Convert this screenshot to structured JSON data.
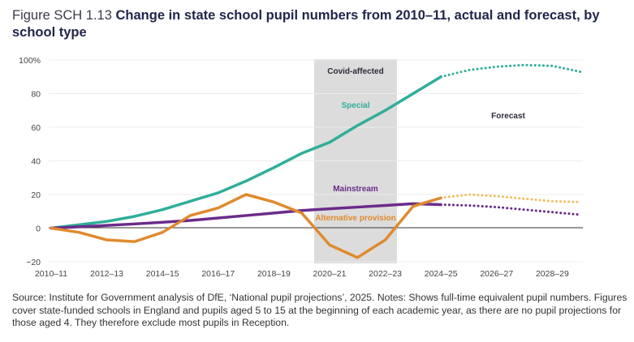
{
  "figure": {
    "label": "Figure SCH 1.13",
    "title": "Change in state school pupil numbers from 2010–11, actual and forecast, by school type"
  },
  "source": "Source: Institute for Government analysis of DfE, ‘National pupil projections’, 2025. Notes: Shows full-time equivalent pupil numbers. Figures cover state-funded schools in England and pupils aged 5 to 15 at the beginning of each academic year, as there are no pupil projections for those aged 4. They therefore exclude most pupils in Reception.",
  "chart_data": {
    "type": "line",
    "title": "Change in state school pupil numbers from 2010–11, actual and forecast, by school type",
    "xlabel": "",
    "ylabel": "",
    "x": [
      "2010–11",
      "2011–12",
      "2012–13",
      "2013–14",
      "2014–15",
      "2015–16",
      "2016–17",
      "2017–18",
      "2018–19",
      "2019–20",
      "2020–21",
      "2021–22",
      "2022–23",
      "2023–24",
      "2024–25",
      "2025–26",
      "2026–27",
      "2027–28",
      "2028–29",
      "2029–30"
    ],
    "x_tick_labels": [
      "2010–11",
      "2012–13",
      "2014–15",
      "2016–17",
      "2018–19",
      "2020–21",
      "2022–23",
      "2024–25",
      "2026–27",
      "2028–29"
    ],
    "y_tick_labels": [
      "100%",
      "80",
      "60",
      "40",
      "20",
      "0",
      "−20"
    ],
    "y_ticks": [
      100,
      80,
      60,
      40,
      20,
      0,
      -20
    ],
    "ylim": [
      -20,
      100
    ],
    "grid": true,
    "forecast_start_index": 14,
    "series": [
      {
        "name": "Special",
        "color": "#2fae9a",
        "values": [
          0,
          2,
          4,
          7,
          11,
          16,
          21,
          28,
          36,
          44.5,
          51,
          61,
          70,
          80,
          90,
          94,
          96,
          97,
          96.5,
          93
        ]
      },
      {
        "name": "Mainstream",
        "color": "#6a2c8a",
        "values": [
          0,
          0.8,
          1.6,
          2.5,
          3.5,
          4.6,
          6,
          7.5,
          9,
          10.5,
          11.5,
          12.5,
          13.5,
          14.5,
          14,
          13.5,
          12.5,
          11,
          9.5,
          8
        ]
      },
      {
        "name": "Alternative provision",
        "color": "#e08a2e",
        "forecast_color": "#f0c060",
        "values": [
          0,
          -2.5,
          -7,
          -8,
          -2.5,
          7.5,
          12,
          20,
          15.5,
          9,
          -10,
          -17.5,
          -7,
          13,
          18,
          20,
          19,
          17.5,
          16,
          15.5
        ]
      }
    ],
    "annotations": [
      {
        "text": "Covid-affected",
        "type": "shaded-band",
        "x_from": "2019–20",
        "x_to": "2022–23"
      },
      {
        "text": "Forecast"
      },
      {
        "text": "Special",
        "series": "Special"
      },
      {
        "text": "Mainstream",
        "series": "Mainstream"
      },
      {
        "text": "Alternative provision",
        "series": "Alternative provision"
      }
    ]
  }
}
